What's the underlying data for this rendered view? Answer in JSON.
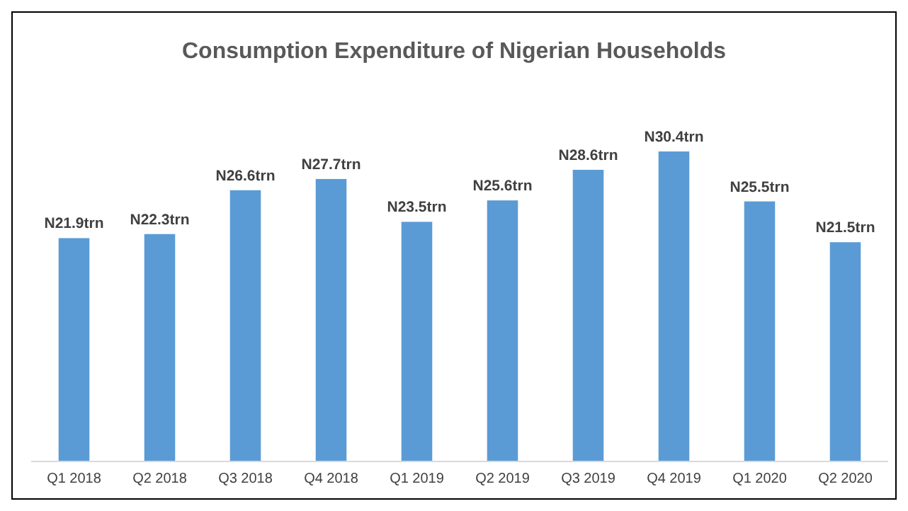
{
  "chart_data": {
    "type": "bar",
    "title": "Consumption Expenditure of Nigerian Households",
    "categories": [
      "Q1 2018",
      "Q2 2018",
      "Q3 2018",
      "Q4 2018",
      "Q1 2019",
      "Q2 2019",
      "Q3 2019",
      "Q4 2019",
      "Q1 2020",
      "Q2 2020"
    ],
    "values": [
      21.9,
      22.3,
      26.6,
      27.7,
      23.5,
      25.6,
      28.6,
      30.4,
      25.5,
      21.5
    ],
    "value_labels": [
      "N21.9trn",
      "N22.3trn",
      "N26.6trn",
      "N27.7trn",
      "N23.5trn",
      "N25.6trn",
      "N28.6trn",
      "N30.4trn",
      "N25.5trn",
      "N21.5trn"
    ],
    "color": "#5b9bd5"
  }
}
